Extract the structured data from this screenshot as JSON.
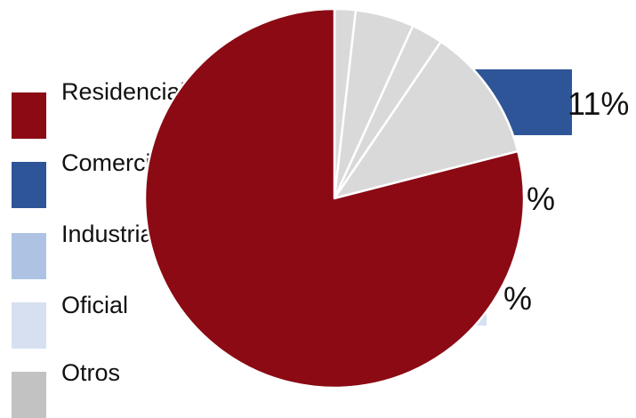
{
  "chart_data": {
    "type": "pie",
    "legend": [
      {
        "label": "Residencial",
        "color": "#8b0a14"
      },
      {
        "label": "Comercial",
        "color": "#2e5597"
      },
      {
        "label": "Industrial",
        "color": "#aec3e3"
      },
      {
        "label": "Oficial",
        "color": "#d6e0f0"
      },
      {
        "label": "Otros",
        "color": "#c2c2c2"
      }
    ],
    "slices": [
      {
        "value": 1.8,
        "color": "#d9d9d9"
      },
      {
        "value": 5.0,
        "color": "#d9d9d9"
      },
      {
        "value": 2.7,
        "color": "#d9d9d9"
      },
      {
        "value": 11.5,
        "color": "#d9d9d9"
      },
      {
        "value": 79.0,
        "color": "#8b0a14"
      }
    ],
    "bar_labels": [
      "11%",
      "%",
      "%"
    ],
    "bar_color": "#2e5597"
  }
}
